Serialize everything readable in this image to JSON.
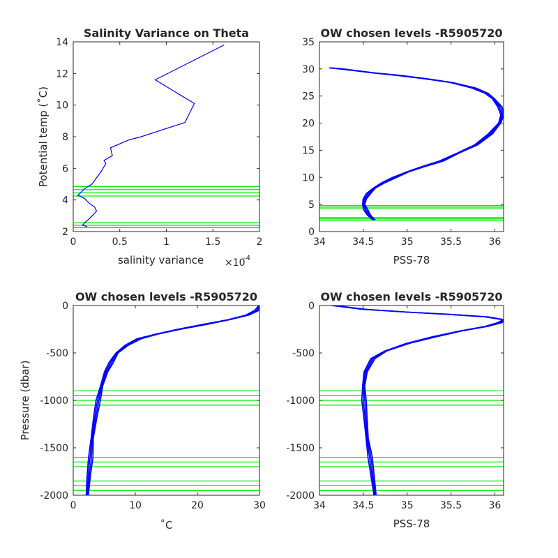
{
  "colors": {
    "profile": "#0000ff",
    "levels": "#00ee00",
    "axis": "#262626",
    "background": "#ffffff"
  },
  "chart_data": [
    {
      "type": "line",
      "title": "Salinity Variance on Theta",
      "xlabel": "salinity variance",
      "xexponent": "×10",
      "xexponent_power": "-4",
      "ylabel": "Potential temp (˚C)",
      "xlim": [
        0,
        2
      ],
      "ylim": [
        2,
        14
      ],
      "xticks": [
        0,
        0.5,
        1,
        1.5,
        2
      ],
      "xtick_labels": [
        "0",
        "0.5",
        "1",
        "1.5",
        "2"
      ],
      "yticks": [
        2,
        4,
        6,
        8,
        10,
        12,
        14
      ],
      "ytick_labels": [
        "2",
        "4",
        "6",
        "8",
        "10",
        "12",
        "14"
      ],
      "series": [
        {
          "x": [
            0.15,
            0.13,
            0.1,
            0.13,
            0.18,
            0.22,
            0.25,
            0.23,
            0.17,
            0.12,
            0.05,
            0.12,
            0.2,
            0.25,
            0.3,
            0.35,
            0.33,
            0.42,
            0.4,
            0.6,
            0.73,
            1.2,
            1.3,
            0.88,
            1.62
          ],
          "y": [
            2.3,
            2.35,
            2.4,
            2.6,
            2.85,
            3.1,
            3.3,
            3.55,
            3.8,
            4.1,
            4.3,
            4.7,
            5.0,
            5.4,
            5.8,
            6.3,
            6.5,
            6.8,
            7.3,
            7.8,
            8.0,
            8.9,
            10.1,
            11.6,
            13.8
          ]
        }
      ],
      "hlines": [
        2.25,
        2.4,
        2.55,
        4.25,
        4.45,
        4.65,
        4.85
      ]
    },
    {
      "type": "line",
      "title": "OW chosen levels -R5905720",
      "xlabel": "PSS-78",
      "ylabel": "",
      "xlim": [
        34,
        36.1
      ],
      "ylim": [
        0,
        35
      ],
      "xticks": [
        34,
        34.5,
        35,
        35.5,
        36
      ],
      "xtick_labels": [
        "34",
        "34.5",
        "35",
        "35.5",
        "36"
      ],
      "yticks": [
        0,
        5,
        10,
        15,
        20,
        25,
        30,
        35
      ],
      "ytick_labels": [
        "0",
        "5",
        "10",
        "15",
        "20",
        "25",
        "30",
        "35"
      ],
      "series": [
        {
          "x": [
            34.62,
            34.56,
            34.52,
            34.5,
            34.51,
            34.55,
            34.62,
            34.72,
            34.85,
            35.0,
            35.18,
            35.38,
            35.58,
            35.78,
            35.94,
            36.05,
            36.08,
            36.05,
            35.98,
            35.9,
            35.75,
            35.5,
            35.2,
            34.9,
            34.6,
            34.4,
            34.25,
            34.12
          ],
          "y": [
            2.1,
            3.0,
            4.0,
            5.0,
            6.0,
            7.0,
            8.0,
            9.0,
            10.0,
            11.0,
            12.0,
            13.0,
            14.5,
            16.0,
            18.0,
            20.0,
            21.5,
            23.0,
            24.5,
            25.5,
            26.5,
            27.5,
            28.2,
            28.8,
            29.3,
            29.7,
            30.0,
            30.2
          ]
        }
      ],
      "hlines": [
        2.1,
        2.35,
        2.6,
        4.2,
        4.5,
        4.8
      ]
    },
    {
      "type": "line",
      "title": "OW chosen levels -R5905720",
      "xlabel": "˚C",
      "ylabel": "Pressure (dbar)",
      "xlim": [
        0,
        30
      ],
      "ylim": [
        -2000,
        0
      ],
      "xticks": [
        0,
        10,
        20,
        30
      ],
      "xtick_labels": [
        "0",
        "10",
        "20",
        "30"
      ],
      "yticks": [
        -2000,
        -1500,
        -1000,
        -500,
        0
      ],
      "ytick_labels": [
        "-2000",
        "-1500",
        "-1000",
        "-500",
        "0"
      ],
      "series": [
        {
          "x": [
            2.2,
            2.4,
            2.7,
            3.0,
            3.4,
            3.9,
            4.5,
            5.2,
            6.0,
            7.0,
            8.5,
            10.5,
            13.5,
            17.0,
            21.0,
            25.0,
            28.0,
            29.5,
            30.0
          ],
          "y": [
            -2000,
            -1800,
            -1600,
            -1400,
            -1200,
            -1000,
            -850,
            -700,
            -600,
            -500,
            -420,
            -350,
            -300,
            -250,
            -200,
            -150,
            -100,
            -50,
            0
          ]
        }
      ],
      "hlines": [
        -900,
        -950,
        -1000,
        -1050,
        -1600,
        -1650,
        -1700,
        -1850,
        -1900,
        -1950
      ]
    },
    {
      "type": "line",
      "title": "OW chosen levels -R5905720",
      "xlabel": "PSS-78",
      "ylabel": "",
      "xlim": [
        34,
        36.1
      ],
      "ylim": [
        -2000,
        0
      ],
      "xticks": [
        34,
        34.5,
        35,
        35.5,
        36
      ],
      "xtick_labels": [
        "34",
        "34.5",
        "35",
        "35.5",
        "36"
      ],
      "yticks": [
        -2000,
        -1500,
        -1000,
        -500,
        0
      ],
      "ytick_labels": [
        "-2000",
        "-1500",
        "-1000",
        "-500",
        "0"
      ],
      "series": [
        {
          "x": [
            34.63,
            34.6,
            34.57,
            34.54,
            34.52,
            34.5,
            34.5,
            34.52,
            34.6,
            34.75,
            35.0,
            35.3,
            35.6,
            35.9,
            36.05,
            36.1,
            35.9,
            35.5,
            35.0,
            34.5,
            34.15
          ],
          "y": [
            -2000,
            -1800,
            -1600,
            -1400,
            -1200,
            -1000,
            -850,
            -700,
            -560,
            -480,
            -400,
            -330,
            -270,
            -220,
            -180,
            -150,
            -120,
            -95,
            -70,
            -40,
            0
          ]
        }
      ],
      "hlines": [
        -900,
        -950,
        -1000,
        -1050,
        -1600,
        -1650,
        -1700,
        -1850,
        -1900,
        -1950
      ]
    }
  ]
}
